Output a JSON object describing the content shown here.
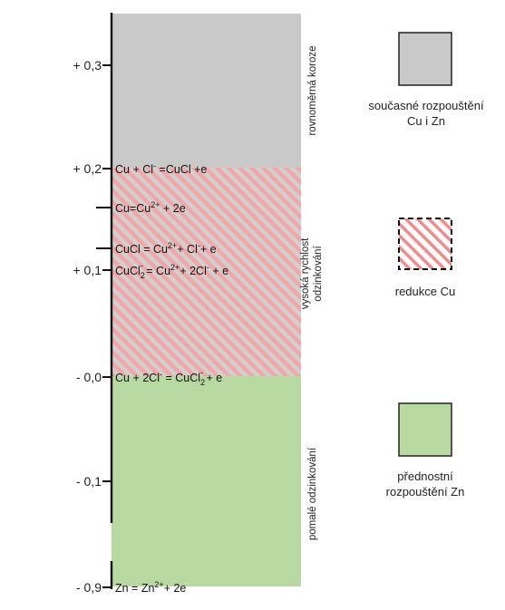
{
  "zones": {
    "gray": "rovnoměrná koroze",
    "hatched_line1": "vysoká rychlost",
    "hatched_line2": "odzinkování",
    "green": "pomalé odzinkování"
  },
  "ticks": [
    "+ 0,3",
    "+ 0,2",
    "+ 0,1",
    "- 0,0",
    "- 0,1",
    "- 0,9"
  ],
  "equations": {
    "e1": {
      "a": "Cu",
      "b": " + Cl",
      "b_sup": "-",
      "c": " =CuCl +e"
    },
    "e2": {
      "a": "Cu=Cu",
      "a_sup": "2+",
      "b": " + 2e"
    },
    "e3": {
      "a": "CuCl = Cu",
      "a_sup": "2+",
      "b": "+ Cl",
      "b_sup": "-",
      "c": "+ e"
    },
    "e4": {
      "a": "CuCl",
      "a_sub": "2",
      "a_sup": "-",
      "b": " = Cu",
      "b_sup": "2+",
      "c": "+ 2Cl",
      "c_sup": "-",
      "d": " + e"
    },
    "e5": {
      "a": "Cu + 2Cl",
      "a_sup": "-",
      "b": " = CuCl",
      "b_sub": "2",
      "b_sup": "-",
      "c": " + e"
    },
    "e6": {
      "a": "Zn = Zn",
      "a_sup": "2+",
      "b": "+ 2e"
    }
  },
  "legend": {
    "item1_line1": "současné rozpouštění",
    "item1_line2": "Cu i Zn",
    "item2": "redukce Cu",
    "item3_line1": "přednostní",
    "item3_line2": "rozpouštění Zn"
  },
  "colors": {
    "gray_zone": "#c9c9c9",
    "hatch_stripe": "#f0a0a0",
    "green_zone": "#b8d9a2",
    "axis": "#111111"
  }
}
